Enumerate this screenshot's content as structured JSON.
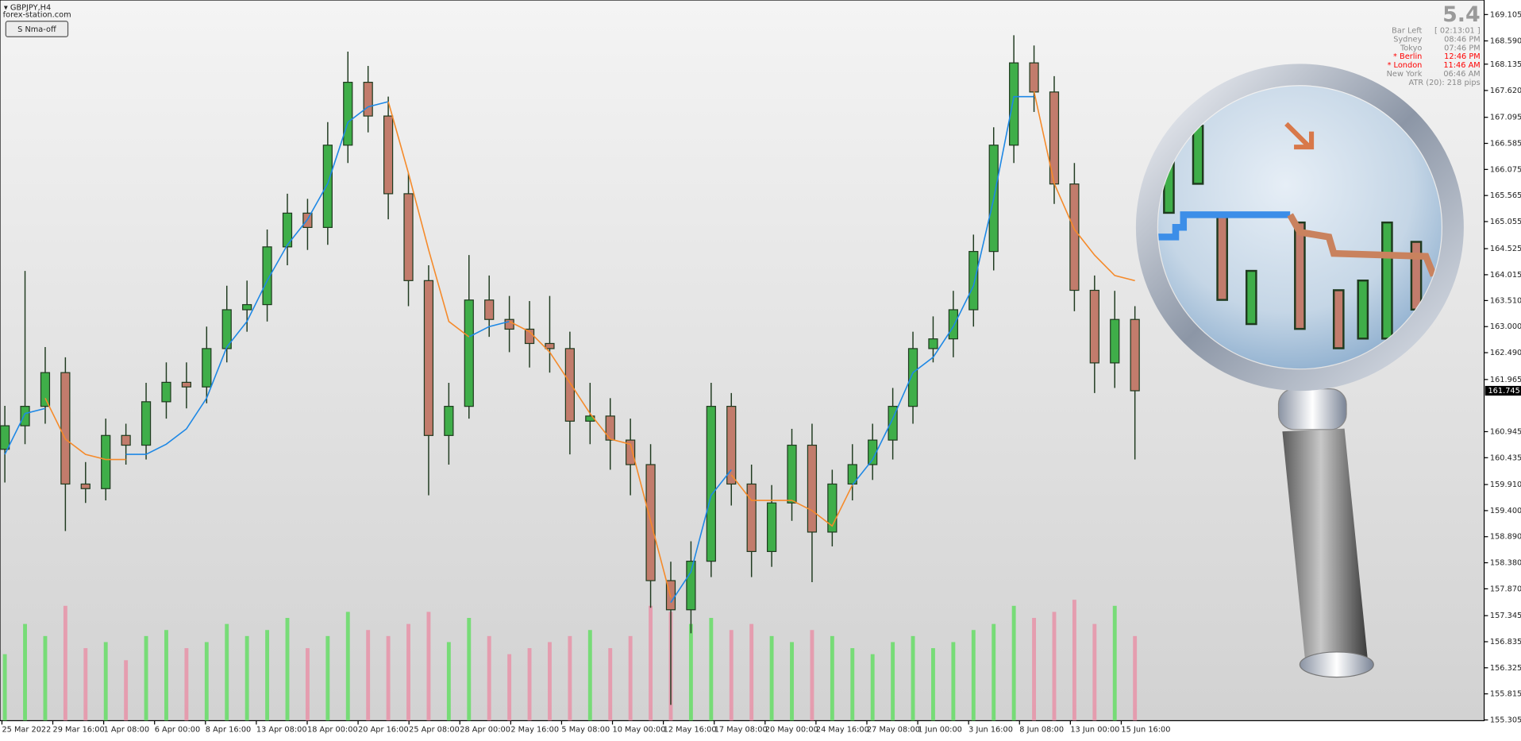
{
  "header": {
    "symbol": "GBPJPY,H4",
    "site": "forex-station.com",
    "button": "S Nma-off"
  },
  "info_panel": {
    "spread": 5.4,
    "rows": [
      {
        "label": "Bar Left",
        "value": "[ 02:13:01 ]",
        "color": "#8a8a8a"
      },
      {
        "label": "Sydney",
        "value": "08:46 PM",
        "color": "#8a8a8a"
      },
      {
        "label": "Tokyo",
        "value": "07:46 PM",
        "color": "#8a8a8a"
      },
      {
        "label": "* Berlin",
        "value": "12:46 PM",
        "color": "#ff0000"
      },
      {
        "label": "* London",
        "value": "11:46 AM",
        "color": "#ff0000"
      },
      {
        "label": "New York",
        "value": "06:46 AM",
        "color": "#8a8a8a"
      }
    ],
    "atr": "ATR (20): 218 pips"
  },
  "chart_data": {
    "type": "candlestick",
    "up_color": "#3fae49",
    "down_color": "#c27c6c",
    "wick_color": "#1f3a1f",
    "volume_up_color": "#66dd66",
    "volume_down_color": "#e893a8",
    "x_labels": [
      "25 Mar 2022",
      "29 Mar 16:00",
      "1 Apr 08:00",
      "6 Apr 00:00",
      "8 Apr 16:00",
      "13 Apr 08:00",
      "18 Apr 00:00",
      "20 Apr 16:00",
      "25 Apr 08:00",
      "28 Apr 00:00",
      "2 May 16:00",
      "5 May 08:00",
      "10 May 00:00",
      "12 May 16:00",
      "17 May 08:00",
      "20 May 00:00",
      "24 May 16:00",
      "27 May 08:00",
      "1 Jun 00:00",
      "3 Jun 16:00",
      "8 Jun 08:00",
      "13 Jun 00:00",
      "15 Jun 16:00"
    ],
    "open": [
      160.6,
      161.06,
      161.44,
      162.1,
      159.92,
      159.83,
      160.87,
      160.68,
      161.53,
      161.91,
      161.82,
      162.57,
      163.33,
      163.43,
      164.56,
      165.22,
      164.94,
      166.55,
      167.78,
      167.12,
      165.6,
      163.9,
      160.87,
      161.44,
      163.52,
      163.14,
      162.95,
      162.67,
      162.57,
      161.15,
      161.25,
      160.78,
      160.3,
      158.03,
      157.46,
      158.41,
      161.44,
      159.92,
      158.6,
      159.55,
      160.68,
      158.98,
      159.92,
      160.3,
      160.78,
      161.44,
      162.57,
      162.76,
      163.33,
      164.47,
      166.55,
      168.16,
      167.59,
      165.79,
      163.71,
      162.29,
      163.14
    ],
    "high": [
      161.45,
      164.09,
      162.6,
      162.4,
      160.35,
      161.2,
      161.1,
      161.9,
      162.3,
      162.3,
      163.0,
      163.8,
      163.9,
      164.9,
      165.6,
      165.5,
      167.0,
      168.38,
      168.1,
      167.5,
      166.0,
      164.2,
      161.9,
      164.4,
      164.0,
      163.6,
      163.5,
      163.6,
      162.9,
      161.9,
      161.6,
      161.2,
      160.7,
      158.4,
      158.8,
      161.9,
      161.7,
      160.3,
      159.9,
      161.0,
      161.1,
      160.2,
      160.7,
      161.1,
      161.8,
      162.9,
      163.2,
      163.7,
      164.8,
      166.9,
      168.7,
      168.5,
      167.9,
      166.2,
      164.0,
      163.7,
      163.4
    ],
    "low": [
      159.95,
      160.7,
      161.1,
      159.0,
      159.55,
      159.6,
      160.3,
      160.4,
      161.2,
      161.4,
      161.5,
      162.3,
      162.9,
      163.1,
      164.2,
      164.5,
      164.6,
      166.2,
      166.8,
      165.1,
      163.4,
      159.7,
      160.3,
      161.2,
      162.8,
      162.5,
      162.2,
      162.1,
      160.5,
      160.7,
      160.2,
      159.7,
      157.5,
      155.6,
      157.0,
      158.1,
      159.5,
      158.1,
      158.3,
      159.2,
      158.0,
      158.7,
      159.6,
      160.0,
      160.4,
      161.1,
      162.3,
      162.4,
      163.0,
      164.1,
      166.2,
      167.2,
      165.4,
      163.3,
      161.7,
      161.8,
      160.4
    ],
    "close": [
      161.06,
      161.44,
      162.1,
      159.92,
      159.83,
      160.87,
      160.68,
      161.53,
      161.91,
      161.82,
      162.57,
      163.33,
      163.43,
      164.56,
      165.22,
      164.94,
      166.55,
      167.78,
      167.12,
      165.6,
      163.9,
      160.87,
      161.44,
      163.52,
      163.14,
      162.95,
      162.67,
      162.57,
      161.15,
      161.25,
      160.78,
      160.3,
      158.03,
      157.46,
      158.41,
      161.44,
      159.92,
      158.6,
      159.55,
      160.68,
      158.98,
      159.92,
      160.3,
      160.78,
      161.44,
      162.57,
      162.76,
      163.33,
      164.47,
      166.55,
      168.16,
      167.59,
      165.79,
      163.71,
      162.29,
      163.14,
      161.745
    ],
    "volumes": [
      55,
      80,
      70,
      95,
      60,
      65,
      50,
      70,
      75,
      60,
      65,
      80,
      70,
      75,
      85,
      60,
      70,
      90,
      75,
      70,
      80,
      90,
      65,
      85,
      70,
      55,
      60,
      65,
      70,
      75,
      60,
      70,
      95,
      90,
      80,
      85,
      75,
      80,
      70,
      65,
      75,
      70,
      60,
      55,
      65,
      70,
      60,
      65,
      75,
      80,
      95,
      85,
      90,
      100,
      80,
      95,
      70
    ],
    "lines": [
      {
        "color": "#1e88e5",
        "values": [
          160.5,
          161.3,
          161.4,
          null,
          null,
          null,
          160.5,
          160.5,
          160.7,
          161.0,
          161.6,
          162.6,
          163.1,
          163.9,
          164.6,
          165.1,
          165.8,
          167.0,
          167.3,
          167.4,
          null,
          null,
          null,
          162.8,
          163.0,
          163.1,
          null,
          null,
          null,
          null,
          null,
          null,
          null,
          157.6,
          158.2,
          159.7,
          160.2,
          null,
          null,
          null,
          null,
          null,
          159.9,
          160.4,
          161.2,
          162.1,
          162.4,
          163.0,
          163.8,
          165.5,
          167.5,
          167.5,
          null,
          null,
          null,
          null,
          null
        ]
      },
      {
        "color": "#f58a2a",
        "values": [
          null,
          null,
          161.6,
          160.8,
          160.5,
          160.4,
          160.4,
          null,
          null,
          null,
          null,
          null,
          null,
          null,
          null,
          null,
          null,
          null,
          null,
          167.4,
          166.0,
          164.5,
          163.1,
          162.8,
          null,
          163.1,
          162.9,
          162.5,
          161.9,
          161.3,
          160.8,
          160.7,
          159.2,
          157.7,
          null,
          null,
          160.1,
          159.6,
          159.6,
          159.6,
          159.4,
          159.1,
          159.9,
          null,
          null,
          null,
          null,
          null,
          null,
          null,
          null,
          167.6,
          165.8,
          164.9,
          164.4,
          164.0,
          163.9
        ]
      }
    ],
    "last_price": 161.745,
    "ylim": [
      155.29,
      169.39
    ],
    "yticks": [
      169.105,
      {
        "value": 168.59,
        "label": "168.590"
      },
      168.135,
      {
        "value": 167.62,
        "label": "167.620"
      },
      167.095,
      166.585,
      166.075,
      165.565,
      165.055,
      164.525,
      164.015,
      {
        "value": 163.51,
        "label": "163.510"
      },
      {
        "value": 163.0,
        "label": "163.000"
      },
      {
        "value": 162.49,
        "label": "162.490"
      },
      161.965,
      160.945,
      160.435,
      {
        "value": 159.91,
        "label": "159.910"
      },
      {
        "value": 159.4,
        "label": "159.400"
      },
      {
        "value": 158.89,
        "label": "158.890"
      },
      {
        "value": 158.38,
        "label": "158.380"
      },
      {
        "value": 157.87,
        "label": "157.870"
      },
      157.345,
      156.835,
      156.325,
      155.815,
      155.305
    ]
  }
}
